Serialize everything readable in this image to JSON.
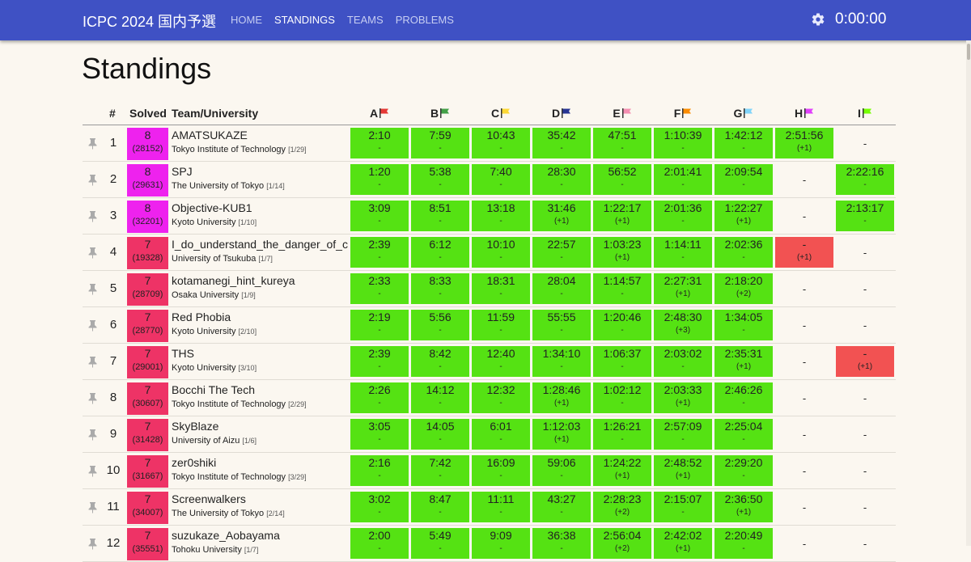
{
  "app": {
    "title": "ICPC 2024 国内予選",
    "clock": "0:00:00"
  },
  "nav": [
    {
      "label": "HOME",
      "active": false
    },
    {
      "label": "STANDINGS",
      "active": true
    },
    {
      "label": "TEAMS",
      "active": false
    },
    {
      "label": "PROBLEMS",
      "active": false
    }
  ],
  "page": {
    "title": "Standings"
  },
  "table": {
    "headers": {
      "rank": "#",
      "solved": "Solved",
      "team": "Team/University"
    },
    "problems": [
      {
        "label": "A",
        "flag_color": "#e53935"
      },
      {
        "label": "B",
        "flag_color": "#43a047"
      },
      {
        "label": "C",
        "flag_color": "#fdd835"
      },
      {
        "label": "D",
        "flag_color": "#283593"
      },
      {
        "label": "E",
        "flag_color": "#f48fb1"
      },
      {
        "label": "F",
        "flag_color": "#fb8c00"
      },
      {
        "label": "G",
        "flag_color": "#81d4fa"
      },
      {
        "label": "H",
        "flag_color": "#e040fb"
      },
      {
        "label": "I",
        "flag_color": "#76ff03"
      }
    ],
    "colors": {
      "solved_8": "#ee22ee",
      "solved_7": "#ee3366",
      "accepted": "#55e213",
      "rejected": "#f25252"
    },
    "rows": [
      {
        "rank": "1",
        "solved": "8",
        "penalty": "(28152)",
        "team": "AMATSUKAZE",
        "univ": "Tokyo Institute of Technology",
        "univ_rank": "[1/29]",
        "cells": [
          [
            "ac",
            "2:10",
            "-"
          ],
          [
            "ac",
            "7:59",
            "-"
          ],
          [
            "ac",
            "10:43",
            "-"
          ],
          [
            "ac",
            "35:42",
            "-"
          ],
          [
            "ac",
            "47:51",
            "-"
          ],
          [
            "ac",
            "1:10:39",
            "-"
          ],
          [
            "ac",
            "1:42:12",
            "-"
          ],
          [
            "ac",
            "2:51:56",
            "(+1)"
          ],
          [
            "none",
            "-",
            ""
          ]
        ]
      },
      {
        "rank": "2",
        "solved": "8",
        "penalty": "(29631)",
        "team": "SPJ",
        "univ": "The University of Tokyo",
        "univ_rank": "[1/14]",
        "cells": [
          [
            "ac",
            "1:20",
            "-"
          ],
          [
            "ac",
            "5:38",
            "-"
          ],
          [
            "ac",
            "7:40",
            "-"
          ],
          [
            "ac",
            "28:30",
            "-"
          ],
          [
            "ac",
            "56:52",
            "-"
          ],
          [
            "ac",
            "2:01:41",
            "-"
          ],
          [
            "ac",
            "2:09:54",
            "-"
          ],
          [
            "none",
            "-",
            ""
          ],
          [
            "ac",
            "2:22:16",
            "-"
          ]
        ]
      },
      {
        "rank": "3",
        "solved": "8",
        "penalty": "(32201)",
        "team": "Objective-KUB1",
        "univ": "Kyoto University",
        "univ_rank": "[1/10]",
        "cells": [
          [
            "ac",
            "3:09",
            "-"
          ],
          [
            "ac",
            "8:51",
            "-"
          ],
          [
            "ac",
            "13:18",
            "-"
          ],
          [
            "ac",
            "31:46",
            "(+1)"
          ],
          [
            "ac",
            "1:22:17",
            "(+1)"
          ],
          [
            "ac",
            "2:01:36",
            "-"
          ],
          [
            "ac",
            "1:22:27",
            "(+1)"
          ],
          [
            "none",
            "-",
            ""
          ],
          [
            "ac",
            "2:13:17",
            "-"
          ]
        ]
      },
      {
        "rank": "4",
        "solved": "7",
        "penalty": "(19328)",
        "team": "I_do_understand_the_danger_of_c",
        "univ": "University of Tsukuba",
        "univ_rank": "[1/7]",
        "cells": [
          [
            "ac",
            "2:39",
            "-"
          ],
          [
            "ac",
            "6:12",
            "-"
          ],
          [
            "ac",
            "10:10",
            "-"
          ],
          [
            "ac",
            "22:57",
            "-"
          ],
          [
            "ac",
            "1:03:23",
            "(+1)"
          ],
          [
            "ac",
            "1:14:11",
            "-"
          ],
          [
            "ac",
            "2:02:36",
            "-"
          ],
          [
            "wa",
            "-",
            "(+1)"
          ],
          [
            "none",
            "-",
            ""
          ]
        ]
      },
      {
        "rank": "5",
        "solved": "7",
        "penalty": "(28709)",
        "team": "kotamanegi_hint_kureya",
        "univ": "Osaka University",
        "univ_rank": "[1/9]",
        "cells": [
          [
            "ac",
            "2:33",
            "-"
          ],
          [
            "ac",
            "8:33",
            "-"
          ],
          [
            "ac",
            "18:31",
            "-"
          ],
          [
            "ac",
            "28:04",
            "-"
          ],
          [
            "ac",
            "1:14:57",
            "-"
          ],
          [
            "ac",
            "2:27:31",
            "(+1)"
          ],
          [
            "ac",
            "2:18:20",
            "(+2)"
          ],
          [
            "none",
            "-",
            ""
          ],
          [
            "none",
            "-",
            ""
          ]
        ]
      },
      {
        "rank": "6",
        "solved": "7",
        "penalty": "(28770)",
        "team": "Red Phobia",
        "univ": "Kyoto University",
        "univ_rank": "[2/10]",
        "cells": [
          [
            "ac",
            "2:19",
            "-"
          ],
          [
            "ac",
            "5:56",
            "-"
          ],
          [
            "ac",
            "11:59",
            "-"
          ],
          [
            "ac",
            "55:55",
            "-"
          ],
          [
            "ac",
            "1:20:46",
            "-"
          ],
          [
            "ac",
            "2:48:30",
            "(+3)"
          ],
          [
            "ac",
            "1:34:05",
            "-"
          ],
          [
            "none",
            "-",
            ""
          ],
          [
            "none",
            "-",
            ""
          ]
        ]
      },
      {
        "rank": "7",
        "solved": "7",
        "penalty": "(29001)",
        "team": "THS",
        "univ": "Kyoto University",
        "univ_rank": "[3/10]",
        "cells": [
          [
            "ac",
            "2:39",
            "-"
          ],
          [
            "ac",
            "8:42",
            "-"
          ],
          [
            "ac",
            "12:40",
            "-"
          ],
          [
            "ac",
            "1:34:10",
            "-"
          ],
          [
            "ac",
            "1:06:37",
            "-"
          ],
          [
            "ac",
            "2:03:02",
            "-"
          ],
          [
            "ac",
            "2:35:31",
            "(+1)"
          ],
          [
            "none",
            "-",
            ""
          ],
          [
            "wa",
            "-",
            "(+1)"
          ]
        ]
      },
      {
        "rank": "8",
        "solved": "7",
        "penalty": "(30607)",
        "team": "Bocchi The Tech",
        "univ": "Tokyo Institute of Technology",
        "univ_rank": "[2/29]",
        "cells": [
          [
            "ac",
            "2:26",
            "-"
          ],
          [
            "ac",
            "14:12",
            "-"
          ],
          [
            "ac",
            "12:32",
            "-"
          ],
          [
            "ac",
            "1:28:46",
            "(+1)"
          ],
          [
            "ac",
            "1:02:12",
            "-"
          ],
          [
            "ac",
            "2:03:33",
            "(+1)"
          ],
          [
            "ac",
            "2:46:26",
            "-"
          ],
          [
            "none",
            "-",
            ""
          ],
          [
            "none",
            "-",
            ""
          ]
        ]
      },
      {
        "rank": "9",
        "solved": "7",
        "penalty": "(31428)",
        "team": "SkyBlaze",
        "univ": "University of Aizu",
        "univ_rank": "[1/6]",
        "cells": [
          [
            "ac",
            "3:05",
            "-"
          ],
          [
            "ac",
            "14:05",
            "-"
          ],
          [
            "ac",
            "6:01",
            "-"
          ],
          [
            "ac",
            "1:12:03",
            "(+1)"
          ],
          [
            "ac",
            "1:26:21",
            "-"
          ],
          [
            "ac",
            "2:57:09",
            "-"
          ],
          [
            "ac",
            "2:25:04",
            "-"
          ],
          [
            "none",
            "-",
            ""
          ],
          [
            "none",
            "-",
            ""
          ]
        ]
      },
      {
        "rank": "10",
        "solved": "7",
        "penalty": "(31667)",
        "team": "zer0shiki",
        "univ": "Tokyo Institute of Technology",
        "univ_rank": "[3/29]",
        "cells": [
          [
            "ac",
            "2:16",
            "-"
          ],
          [
            "ac",
            "7:42",
            "-"
          ],
          [
            "ac",
            "16:09",
            "-"
          ],
          [
            "ac",
            "59:06",
            "-"
          ],
          [
            "ac",
            "1:24:22",
            "(+1)"
          ],
          [
            "ac",
            "2:48:52",
            "(+1)"
          ],
          [
            "ac",
            "2:29:20",
            "-"
          ],
          [
            "none",
            "-",
            ""
          ],
          [
            "none",
            "-",
            ""
          ]
        ]
      },
      {
        "rank": "11",
        "solved": "7",
        "penalty": "(34007)",
        "team": "Screenwalkers",
        "univ": "The University of Tokyo",
        "univ_rank": "[2/14]",
        "cells": [
          [
            "ac",
            "3:02",
            "-"
          ],
          [
            "ac",
            "8:47",
            "-"
          ],
          [
            "ac",
            "11:11",
            "-"
          ],
          [
            "ac",
            "43:27",
            "-"
          ],
          [
            "ac",
            "2:28:23",
            "(+2)"
          ],
          [
            "ac",
            "2:15:07",
            "-"
          ],
          [
            "ac",
            "2:36:50",
            "(+1)"
          ],
          [
            "none",
            "-",
            ""
          ],
          [
            "none",
            "-",
            ""
          ]
        ]
      },
      {
        "rank": "12",
        "solved": "7",
        "penalty": "(35551)",
        "team": "suzukaze_Aobayama",
        "univ": "Tohoku University",
        "univ_rank": "[1/7]",
        "cells": [
          [
            "ac",
            "2:00",
            "-"
          ],
          [
            "ac",
            "5:49",
            "-"
          ],
          [
            "ac",
            "9:09",
            "-"
          ],
          [
            "ac",
            "36:38",
            "-"
          ],
          [
            "ac",
            "2:56:04",
            "(+2)"
          ],
          [
            "ac",
            "2:42:02",
            "(+1)"
          ],
          [
            "ac",
            "2:20:49",
            "-"
          ],
          [
            "none",
            "-",
            ""
          ],
          [
            "none",
            "-",
            ""
          ]
        ]
      }
    ]
  }
}
